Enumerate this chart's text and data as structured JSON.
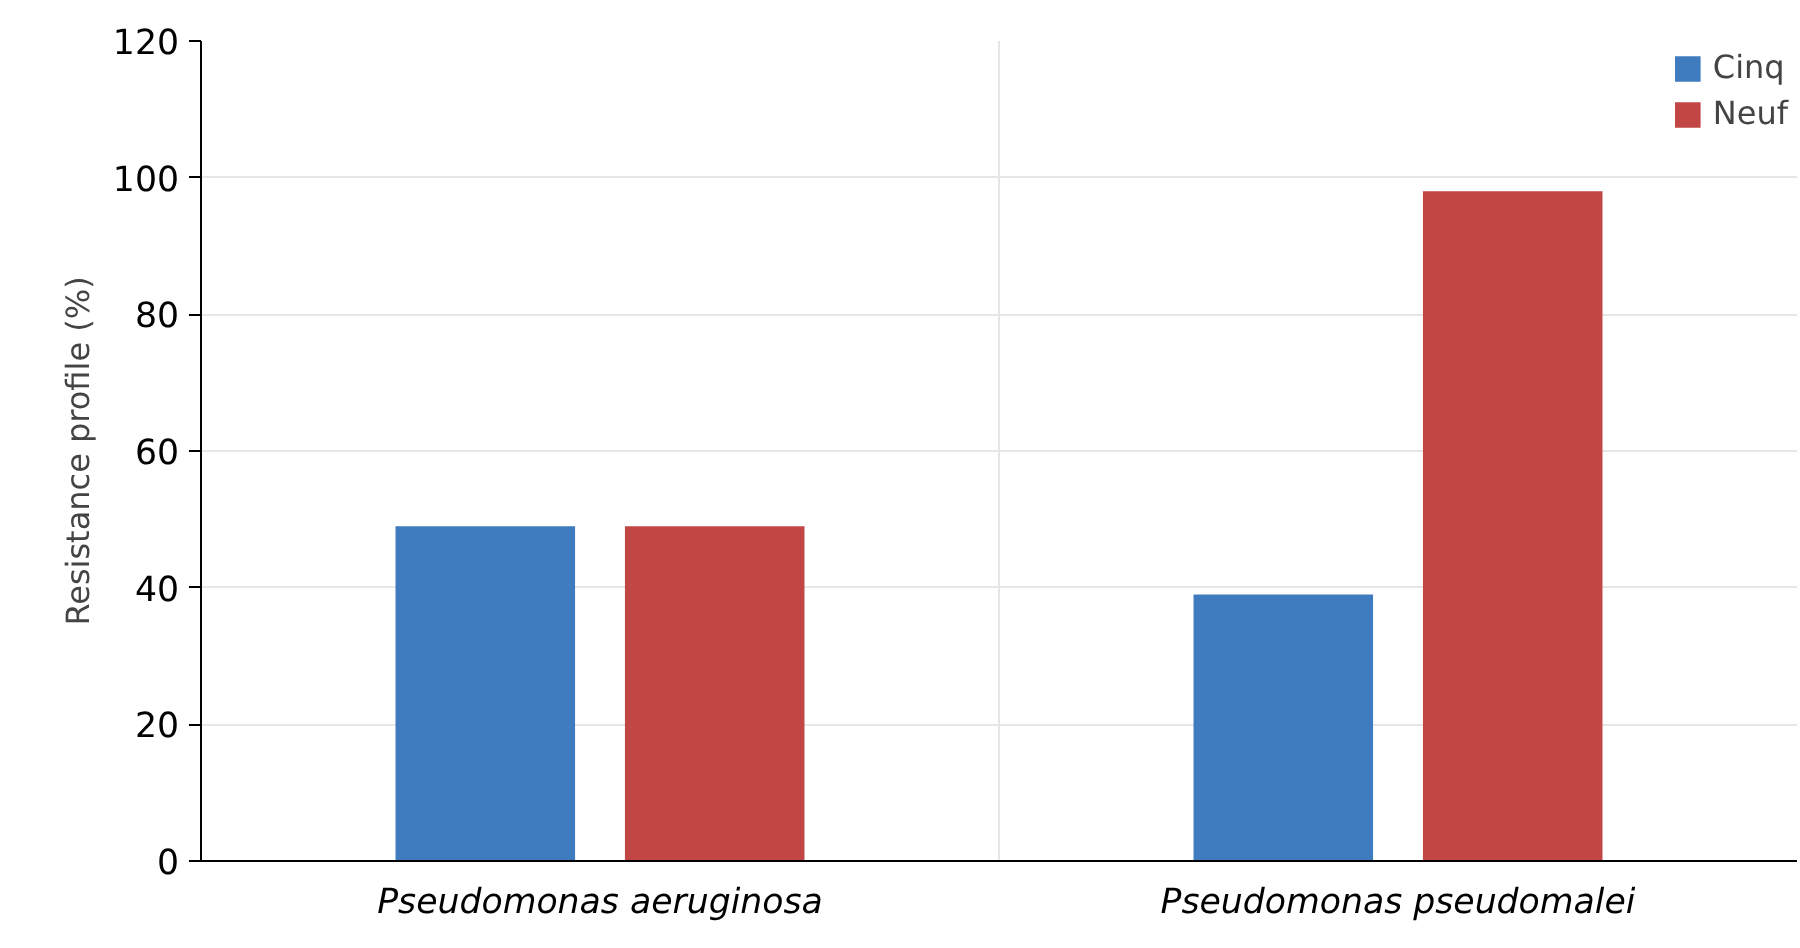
{
  "chart_data": {
    "type": "bar",
    "ylabel": "Resistance profile (%)",
    "categories": [
      "Pseudomonas aeruginosa",
      "Pseudomonas pseudomalei"
    ],
    "series": [
      {
        "name": "Cinq",
        "color": "#3f7bbf",
        "values": [
          49,
          39
        ]
      },
      {
        "name": "Neuf",
        "color": "#c14644",
        "values": [
          49,
          98
        ]
      }
    ],
    "ylim": [
      0,
      120
    ],
    "yticks": [
      0,
      20,
      40,
      60,
      80,
      100,
      120
    ],
    "grid": true,
    "legend": "top right"
  }
}
